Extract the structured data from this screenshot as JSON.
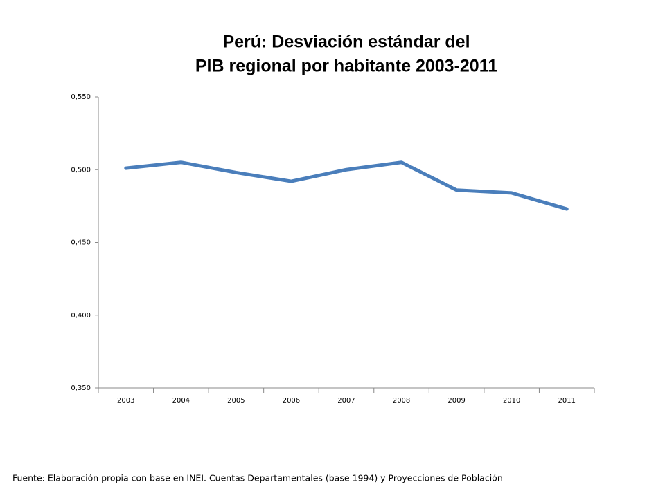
{
  "chart_data": {
    "type": "line",
    "title": [
      "Perú: Desviación estándar del",
      "PIB regional por habitante 2003-2011"
    ],
    "categories": [
      "2003",
      "2004",
      "2005",
      "2006",
      "2007",
      "2008",
      "2009",
      "2010",
      "2011"
    ],
    "series": [
      {
        "color": "#4a7ebb",
        "values": [
          0.501,
          0.505,
          0.498,
          0.492,
          0.5,
          0.505,
          0.486,
          0.484,
          0.473
        ]
      }
    ],
    "ylim": [
      0.35,
      0.55
    ],
    "yticks": [
      {
        "value": 0.35,
        "label": "0,350"
      },
      {
        "value": 0.4,
        "label": "0,400"
      },
      {
        "value": 0.45,
        "label": "0,450"
      },
      {
        "value": 0.5,
        "label": "0,500"
      },
      {
        "value": 0.55,
        "label": "0,550"
      }
    ],
    "grid": false,
    "source": "Fuente: Elaboración propia con base en INEI. Cuentas Departamentales (base 1994) y Proyecciones de Población"
  }
}
